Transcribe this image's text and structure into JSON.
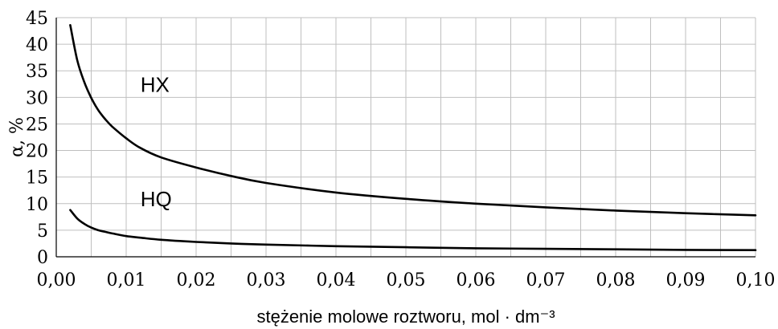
{
  "chart_data": {
    "type": "line",
    "xlabel": "stężenie molowe roztworu, mol · dm⁻³",
    "ylabel": "α, %",
    "xlim": [
      0,
      0.1
    ],
    "ylim": [
      0,
      45
    ],
    "x_ticks": [
      0,
      0.01,
      0.02,
      0.03,
      0.04,
      0.05,
      0.06,
      0.07,
      0.08,
      0.09,
      0.1
    ],
    "x_tick_labels": [
      "0,00",
      "0,01",
      "0,02",
      "0,03",
      "0,04",
      "0,05",
      "0,06",
      "0,07",
      "0,08",
      "0,09",
      "0,10"
    ],
    "y_ticks": [
      0,
      5,
      10,
      15,
      20,
      25,
      30,
      35,
      40,
      45
    ],
    "y_tick_labels": [
      "0",
      "5",
      "10",
      "15",
      "20",
      "25",
      "30",
      "35",
      "40",
      "45"
    ],
    "grid": true,
    "series": [
      {
        "name": "HX",
        "x": [
          0.002,
          0.003,
          0.004,
          0.005,
          0.006,
          0.007,
          0.008,
          0.01,
          0.012,
          0.015,
          0.02,
          0.025,
          0.03,
          0.04,
          0.05,
          0.06,
          0.07,
          0.08,
          0.09,
          0.1
        ],
        "y": [
          43.6,
          37.0,
          32.9,
          29.9,
          27.6,
          25.9,
          24.5,
          22.3,
          20.5,
          18.7,
          16.8,
          15.2,
          13.9,
          12.1,
          10.9,
          10.0,
          9.3,
          8.7,
          8.2,
          7.8
        ]
      },
      {
        "name": "HQ",
        "x": [
          0.002,
          0.003,
          0.004,
          0.005,
          0.006,
          0.007,
          0.008,
          0.01,
          0.012,
          0.015,
          0.02,
          0.025,
          0.03,
          0.04,
          0.05,
          0.06,
          0.07,
          0.08,
          0.09,
          0.1
        ],
        "y": [
          8.8,
          7.2,
          6.2,
          5.5,
          5.0,
          4.7,
          4.4,
          3.9,
          3.6,
          3.2,
          2.8,
          2.5,
          2.3,
          2.0,
          1.8,
          1.6,
          1.5,
          1.4,
          1.3,
          1.25
        ]
      }
    ]
  }
}
